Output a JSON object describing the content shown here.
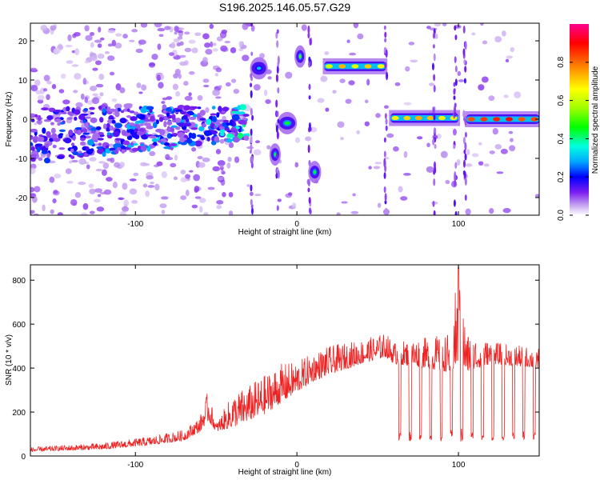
{
  "title": "S196.2025.146.05.57.G29",
  "chart_data": [
    {
      "type": "heatmap",
      "xlabel": "Height of straight line (km)",
      "ylabel": "Frequency (Hz)",
      "xlim": [
        -165,
        150
      ],
      "ylim": [
        -24.5,
        24.5
      ],
      "xticks": [
        -100,
        0,
        100
      ],
      "yticks": [
        -20,
        -10,
        0,
        10,
        20
      ],
      "colorbar": {
        "label": "Normalized spectral amplitude",
        "range": [
          0,
          1
        ],
        "ticks": [
          "0.0",
          "0.2",
          "0.4",
          "0.6",
          "0.8"
        ],
        "colors": [
          "#ffffff",
          "#c8a8f0",
          "#7a1cf0",
          "#0000ff",
          "#00a8ff",
          "#00ffe0",
          "#00ff00",
          "#a0ff00",
          "#ffff00",
          "#ff8000",
          "#ff0000",
          "#ff0090"
        ]
      },
      "features": [
        {
          "x_range": [
            -165,
            -30
          ],
          "freq": -4,
          "amplitude": 0.2,
          "kind": "scattered noise band"
        },
        {
          "x_range": [
            -27,
            -20
          ],
          "freq": 13,
          "amplitude": 0.3,
          "kind": "blob"
        },
        {
          "x_range": [
            -15,
            -12
          ],
          "freq": -9,
          "amplitude": 0.45,
          "kind": "blob"
        },
        {
          "x_range": [
            -10,
            -2
          ],
          "freq": -1,
          "amplitude": 0.45,
          "kind": "blob"
        },
        {
          "x_range": [
            1,
            3
          ],
          "freq": 16,
          "amplitude": 0.5,
          "kind": "blob"
        },
        {
          "x_range": [
            9,
            13
          ],
          "freq": -13.5,
          "amplitude": 0.45,
          "kind": "blob"
        },
        {
          "x_range": [
            17,
            55
          ],
          "freq": 13.5,
          "amplitude": 0.7,
          "kind": "tone line"
        },
        {
          "x_range": [
            58,
            100
          ],
          "freq": 0.3,
          "amplitude": 0.75,
          "kind": "tone line"
        },
        {
          "x_range": [
            105,
            150
          ],
          "freq": 0.0,
          "amplitude": 0.9,
          "kind": "tone line"
        }
      ]
    },
    {
      "type": "line",
      "xlabel": "Height of straight line (km)",
      "ylabel": "SNR (10 * v/v)",
      "xlim": [
        -165,
        150
      ],
      "ylim": [
        0,
        870
      ],
      "xticks": [
        -100,
        0,
        100
      ],
      "yticks": [
        0,
        200,
        400,
        600,
        800
      ],
      "color": "#ee2222",
      "envelope": {
        "x": [
          -165,
          -120,
          -90,
          -70,
          -60,
          -55,
          -50,
          -40,
          -30,
          -20,
          -10,
          0,
          10,
          20,
          40,
          55,
          60,
          80,
          95,
          100,
          105,
          120,
          150
        ],
        "base": [
          20,
          30,
          50,
          70,
          110,
          160,
          110,
          130,
          160,
          190,
          240,
          290,
          340,
          370,
          420,
          450,
          420,
          400,
          380,
          400,
          380,
          420,
          400
        ],
        "peak": [
          40,
          60,
          90,
          120,
          180,
          300,
          150,
          280,
          320,
          370,
          420,
          430,
          470,
          500,
          530,
          560,
          520,
          540,
          560,
          870,
          560,
          520,
          490
        ]
      },
      "dips": {
        "start": 58,
        "end": 150,
        "period": 6.4,
        "depth": 0.15
      }
    }
  ]
}
